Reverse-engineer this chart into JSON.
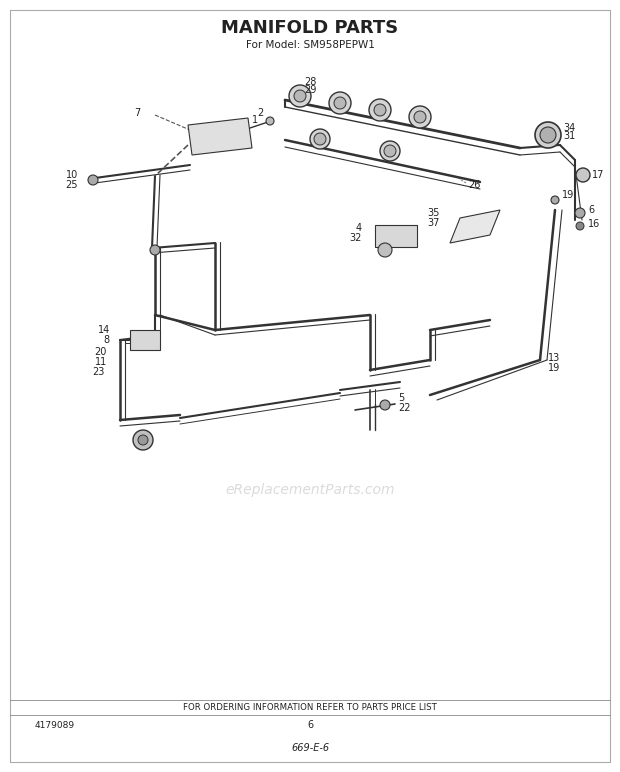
{
  "title": "MANIFOLD PARTS",
  "subtitle": "For Model: SM958PEPW1",
  "footer_text": "FOR ORDERING INFORMATION REFER TO PARTS PRICE LIST",
  "page_number": "6",
  "doc_number": "4179089",
  "code": "669-E-6",
  "watermark": "eReplacementParts.com",
  "bg_color": "#ffffff",
  "line_color": "#333333",
  "text_color": "#222222",
  "title_fontsize": 13,
  "subtitle_fontsize": 7.5,
  "annotation_fontsize": 7,
  "footer_fontsize": 6.5,
  "watermark_color": "#cccccc",
  "border_color": "#888888"
}
